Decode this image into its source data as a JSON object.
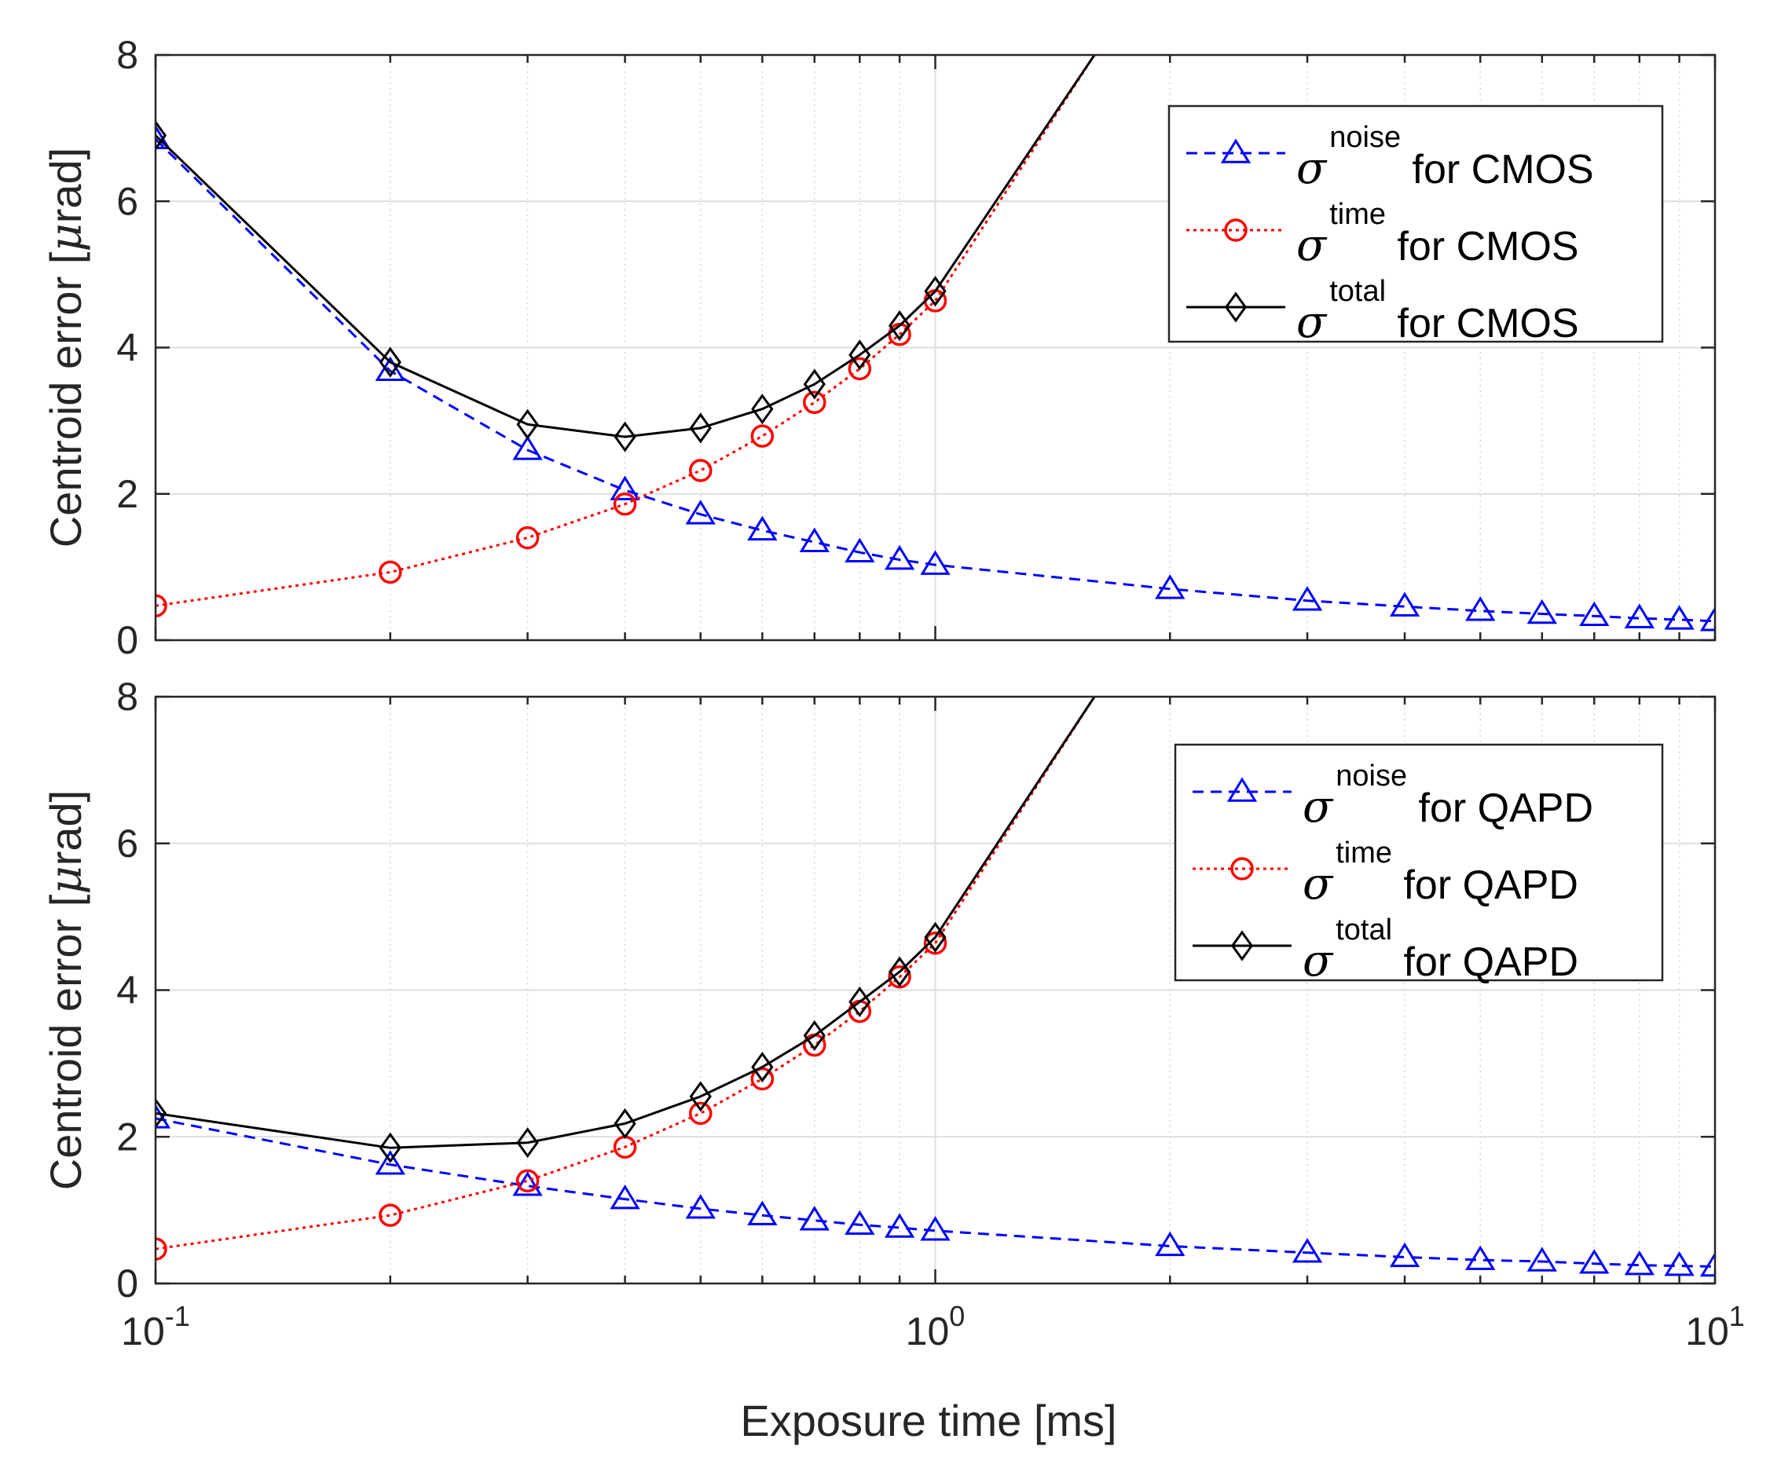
{
  "chart_data": [
    {
      "type": "line",
      "panel": "top",
      "xscale": "log",
      "xlim": [
        0.1,
        10
      ],
      "ylim": [
        0,
        8
      ],
      "ylabel_main": "Centroid error [",
      "ylabel_mu": "μ",
      "ylabel_unit": "rad]",
      "xlabel": "",
      "yticks": [
        "0",
        "2",
        "4",
        "6",
        "8"
      ],
      "grid": true,
      "legend_position": "top-right",
      "series": [
        {
          "name": "noise",
          "legend_symbol": "σ",
          "legend_sup": "noise",
          "legend_rest": " for CMOS",
          "color": "#0000ff",
          "line": "dashed",
          "marker": "triangle",
          "x": [
            0.1,
            0.2,
            0.3,
            0.4,
            0.5,
            0.6,
            0.7,
            0.8,
            0.9,
            1,
            2,
            3,
            4,
            5,
            6,
            7,
            8,
            9,
            10
          ],
          "y": [
            6.85,
            3.68,
            2.6,
            2.05,
            1.72,
            1.5,
            1.34,
            1.2,
            1.1,
            1.03,
            0.7,
            0.54,
            0.46,
            0.4,
            0.36,
            0.33,
            0.3,
            0.28,
            0.26
          ]
        },
        {
          "name": "time",
          "legend_symbol": "σ",
          "legend_sup": "time",
          "legend_rest": " for CMOS",
          "color": "#ff0000",
          "line": "dotted",
          "marker": "circle",
          "x": [
            0.1,
            0.2,
            0.3,
            0.4,
            0.5,
            0.6,
            0.7,
            0.8,
            0.9,
            1,
            1.6
          ],
          "y": [
            0.47,
            0.93,
            1.4,
            1.86,
            2.32,
            2.79,
            3.25,
            3.71,
            4.18,
            4.64,
            8.0
          ],
          "marker_count": 10
        },
        {
          "name": "total",
          "legend_symbol": "σ",
          "legend_sup": "total",
          "legend_rest": " for CMOS",
          "color": "#000000",
          "line": "solid",
          "marker": "diamond",
          "x": [
            0.1,
            0.2,
            0.3,
            0.4,
            0.5,
            0.6,
            0.7,
            0.8,
            0.9,
            1,
            1.6
          ],
          "y": [
            6.9,
            3.8,
            2.95,
            2.78,
            2.9,
            3.16,
            3.5,
            3.9,
            4.3,
            4.77,
            8.0
          ],
          "marker_count": 10
        }
      ]
    },
    {
      "type": "line",
      "panel": "bottom",
      "xscale": "log",
      "xlim": [
        0.1,
        10
      ],
      "ylim": [
        0,
        8
      ],
      "ylabel_main": "Centroid error [",
      "ylabel_mu": "μ",
      "ylabel_unit": "rad]",
      "xlabel": "Exposure time [ms]",
      "yticks": [
        "0",
        "2",
        "4",
        "6",
        "8"
      ],
      "xticks": [
        {
          "base": "10",
          "exp": "-1",
          "value": 0.1
        },
        {
          "base": "10",
          "exp": "0",
          "value": 1
        },
        {
          "base": "10",
          "exp": "1",
          "value": 10
        }
      ],
      "grid": true,
      "legend_position": "top-right",
      "series": [
        {
          "name": "noise",
          "legend_symbol": "σ",
          "legend_sup": "noise",
          "legend_rest": " for QAPD",
          "color": "#0000ff",
          "line": "dashed",
          "marker": "triangle",
          "x": [
            0.1,
            0.2,
            0.3,
            0.4,
            0.5,
            0.6,
            0.7,
            0.8,
            0.9,
            1,
            2,
            3,
            4,
            5,
            6,
            7,
            8,
            9,
            10
          ],
          "y": [
            2.25,
            1.62,
            1.33,
            1.15,
            1.02,
            0.93,
            0.86,
            0.8,
            0.76,
            0.72,
            0.51,
            0.42,
            0.36,
            0.32,
            0.3,
            0.27,
            0.25,
            0.24,
            0.23
          ]
        },
        {
          "name": "time",
          "legend_symbol": "σ",
          "legend_sup": "time",
          "legend_rest": " for QAPD",
          "color": "#ff0000",
          "line": "dotted",
          "marker": "circle",
          "x": [
            0.1,
            0.2,
            0.3,
            0.4,
            0.5,
            0.6,
            0.7,
            0.8,
            0.9,
            1,
            1.6
          ],
          "y": [
            0.47,
            0.93,
            1.4,
            1.86,
            2.32,
            2.79,
            3.25,
            3.71,
            4.18,
            4.64,
            8.0
          ],
          "marker_count": 10
        },
        {
          "name": "total",
          "legend_symbol": "σ",
          "legend_sup": "total",
          "legend_rest": " for QAPD",
          "color": "#000000",
          "line": "solid",
          "marker": "diamond",
          "x": [
            0.1,
            0.2,
            0.3,
            0.4,
            0.5,
            0.6,
            0.7,
            0.8,
            0.9,
            1,
            1.6
          ],
          "y": [
            2.32,
            1.85,
            1.92,
            2.18,
            2.55,
            2.95,
            3.38,
            3.84,
            4.25,
            4.72,
            8.0
          ],
          "marker_count": 10
        }
      ]
    }
  ]
}
